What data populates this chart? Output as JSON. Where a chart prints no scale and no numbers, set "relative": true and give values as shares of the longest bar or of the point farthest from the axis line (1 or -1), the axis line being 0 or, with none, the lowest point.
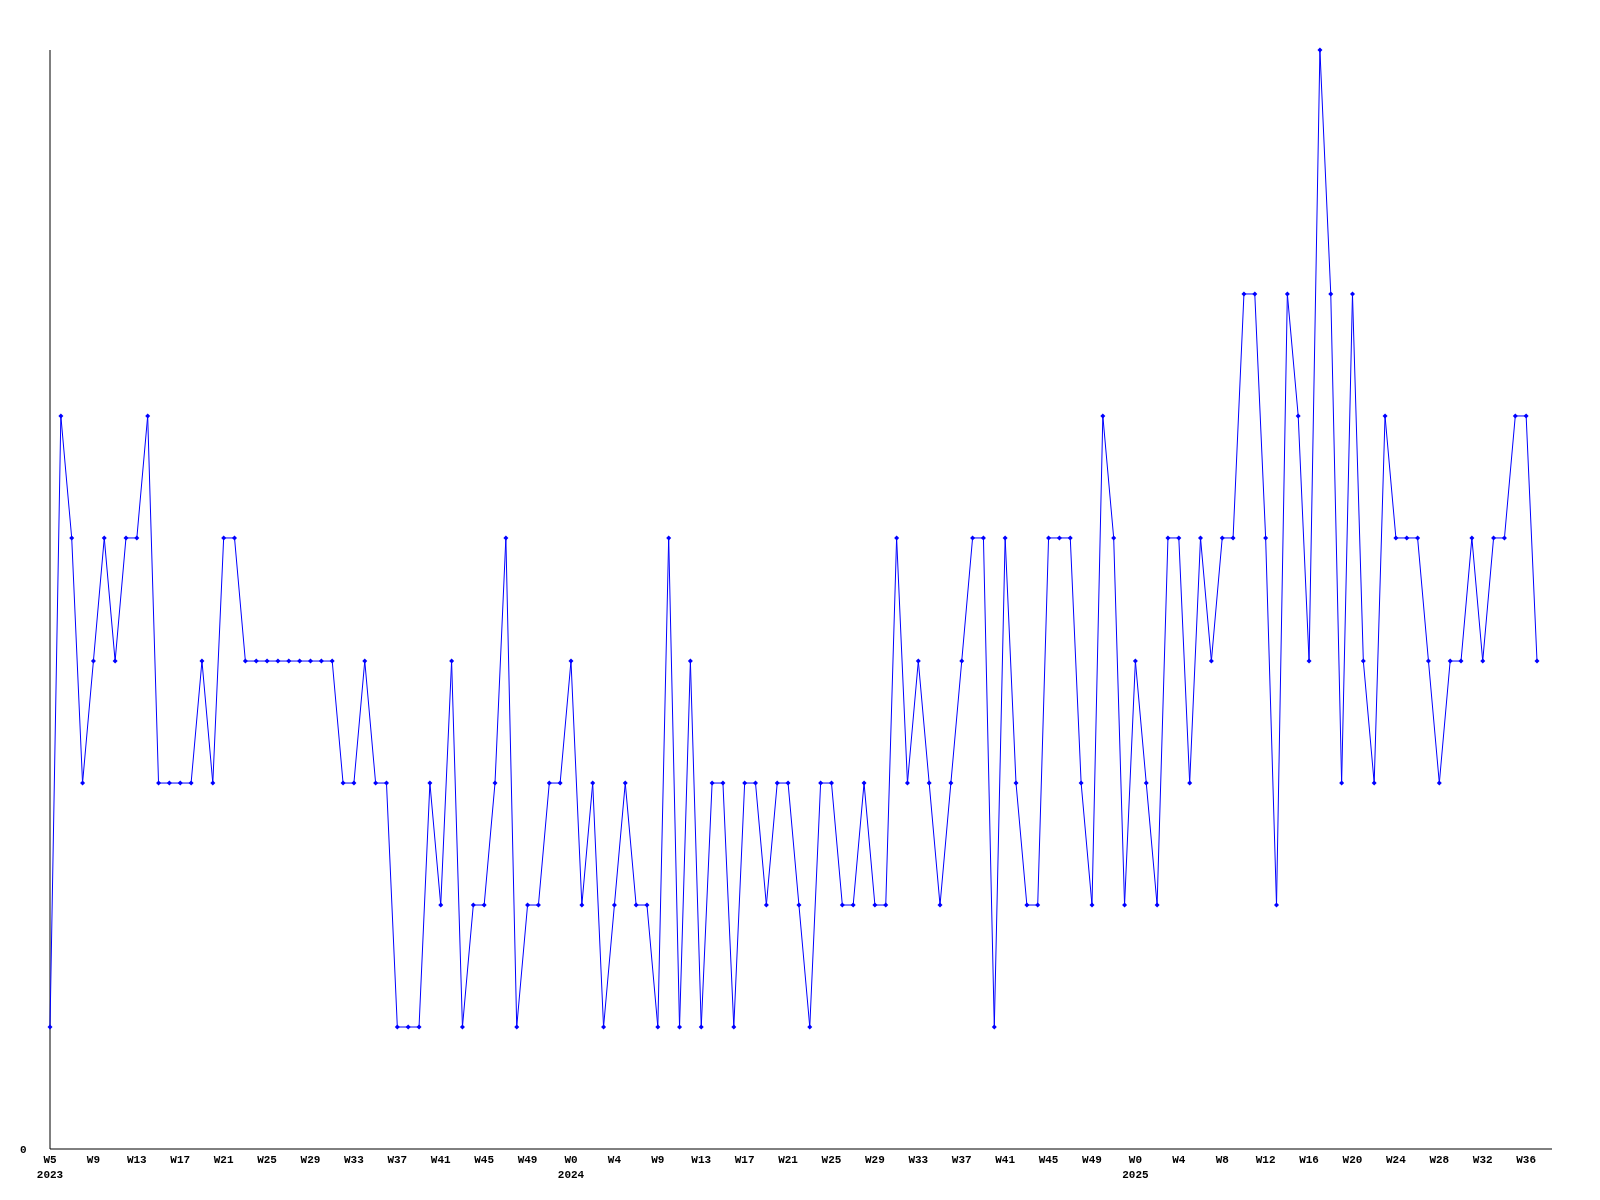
{
  "chart_data": {
    "type": "line",
    "relative": true,
    "marker": "diamond",
    "line_style": "solid",
    "grid": false,
    "annotations": [
      "0"
    ],
    "categories": [
      "W5 2023",
      null,
      null,
      null,
      "W9",
      null,
      null,
      null,
      "W13",
      null,
      null,
      null,
      "W17",
      null,
      null,
      null,
      "W21",
      null,
      null,
      null,
      "W25",
      null,
      null,
      null,
      "W29",
      null,
      null,
      null,
      "W33",
      null,
      null,
      null,
      "W37",
      null,
      null,
      null,
      "W41",
      null,
      null,
      null,
      "W45",
      null,
      null,
      null,
      "W49",
      null,
      null,
      null,
      "W0 2024",
      null,
      null,
      null,
      "W4",
      null,
      null,
      null,
      "W9",
      null,
      null,
      null,
      "W13",
      null,
      null,
      null,
      "W17",
      null,
      null,
      null,
      "W21",
      null,
      null,
      null,
      "W25",
      null,
      null,
      null,
      "W29",
      null,
      null,
      null,
      "W33",
      null,
      null,
      null,
      "W37",
      null,
      null,
      null,
      "W41",
      null,
      null,
      null,
      "W45",
      null,
      null,
      null,
      "W49",
      null,
      null,
      null,
      "W0 2025",
      null,
      null,
      null,
      "W4",
      null,
      null,
      null,
      "W8",
      null,
      null,
      null,
      "W12",
      null,
      null,
      null,
      "W16",
      null,
      null,
      null,
      "W20",
      null,
      null,
      null,
      "W24",
      null,
      null,
      null,
      "W28",
      null,
      null,
      null,
      "W32",
      null,
      null,
      null,
      "W36",
      null
    ],
    "series": [
      {
        "color": "#0000ff",
        "values": [
          0.111,
          0.667,
          0.556,
          0.333,
          0.444,
          0.556,
          0.444,
          0.556,
          0.556,
          0.667,
          0.333,
          0.333,
          0.333,
          0.333,
          0.444,
          0.333,
          0.556,
          0.556,
          0.444,
          0.444,
          0.444,
          0.444,
          0.444,
          0.444,
          0.444,
          0.444,
          0.444,
          0.333,
          0.333,
          0.444,
          0.333,
          0.333,
          0.111,
          0.111,
          0.111,
          0.333,
          0.222,
          0.444,
          0.111,
          0.222,
          0.222,
          0.333,
          0.556,
          0.111,
          0.222,
          0.222,
          0.333,
          0.333,
          0.444,
          0.222,
          0.333,
          0.111,
          0.222,
          0.333,
          0.222,
          0.222,
          0.111,
          0.556,
          0.111,
          0.444,
          0.111,
          0.333,
          0.333,
          0.111,
          0.333,
          0.333,
          0.222,
          0.333,
          0.333,
          0.222,
          0.111,
          0.333,
          0.333,
          0.222,
          0.222,
          0.333,
          0.222,
          0.222,
          0.556,
          0.333,
          0.444,
          0.333,
          0.222,
          0.333,
          0.444,
          0.556,
          0.556,
          0.111,
          0.556,
          0.333,
          0.222,
          0.222,
          0.556,
          0.556,
          0.556,
          0.333,
          0.222,
          0.667,
          0.556,
          0.222,
          0.444,
          0.333,
          0.222,
          0.556,
          0.556,
          0.333,
          0.556,
          0.444,
          0.556,
          0.556,
          0.778,
          0.778,
          0.556,
          0.222,
          0.778,
          0.667,
          0.444,
          1,
          0.778,
          0.333,
          0.778,
          0.444,
          0.333,
          0.667,
          0.556,
          0.556,
          0.556,
          0.444,
          0.333,
          0.444,
          0.444,
          0.556,
          0.444,
          0.556,
          0.556,
          0.667,
          0.667,
          0.444
        ]
      }
    ]
  }
}
